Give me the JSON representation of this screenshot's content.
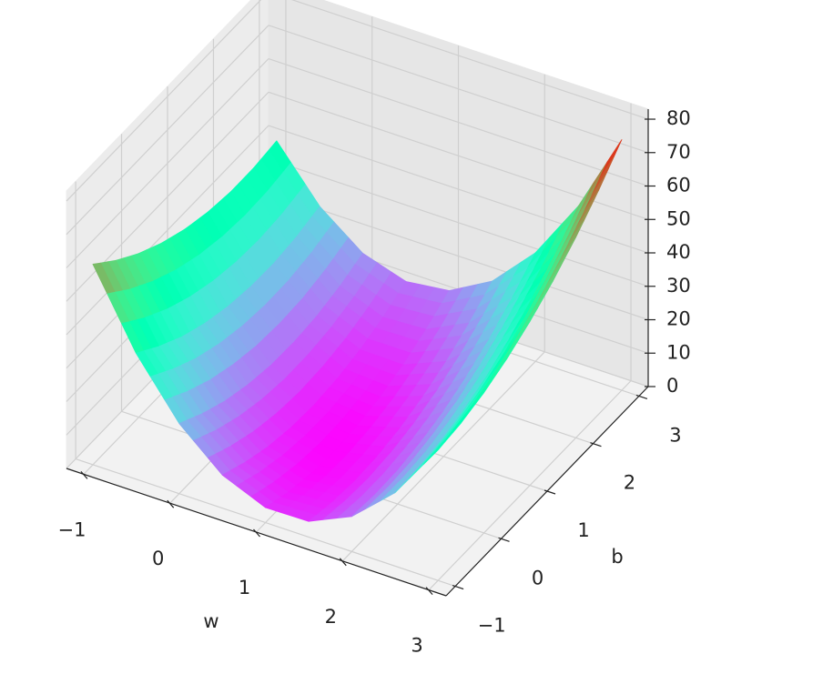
{
  "chart_data": {
    "type": "surface",
    "xlabel": "w",
    "ylabel": "b",
    "colormap": "rainbow",
    "x": [
      -1,
      -0.5,
      0,
      0.5,
      1,
      1.5,
      2,
      2.5,
      3
    ],
    "y": [
      -1,
      -0.5,
      0,
      0.5,
      1,
      1.5,
      2,
      2.5,
      3
    ],
    "z": [
      [
        60,
        54,
        49,
        45,
        42,
        40,
        39,
        39,
        40
      ],
      [
        37.7,
        32.6,
        28.4,
        25.3,
        23.2,
        22.1,
        21.9,
        22.8,
        24.7
      ],
      [
        21,
        16.8,
        13.5,
        11.3,
        10,
        9.8,
        10.5,
        12.3,
        15
      ],
      [
        9.9,
        6.6,
        4.2,
        2.8,
        2.4,
        3.1,
        4.7,
        7.3,
        10.9
      ],
      [
        4.5,
        2,
        0.5,
        0,
        0.5,
        2,
        4.5,
        8,
        12.5
      ],
      [
        4.7,
        3.1,
        2.4,
        2.8,
        4.2,
        6.6,
        9.9,
        14.3,
        19.7
      ],
      [
        10.5,
        9.8,
        10,
        11.3,
        13.5,
        16.8,
        21,
        26.3,
        32.5
      ],
      [
        21.9,
        22.1,
        23.2,
        25.3,
        28.4,
        32.6,
        37.7,
        43.8,
        50.9
      ],
      [
        39,
        40,
        42,
        45,
        49,
        54,
        60,
        67,
        75
      ]
    ],
    "xlim": [
      -1.2,
      3.2
    ],
    "ylim": [
      -1.2,
      3.2
    ],
    "zlim": [
      0,
      83
    ],
    "xticks": [
      {
        "value": -1,
        "label": "−1"
      },
      0,
      1,
      2,
      3
    ],
    "yticks": [
      {
        "value": -1,
        "label": "−1"
      },
      0,
      1,
      2,
      3
    ],
    "zticks": [
      0,
      10,
      20,
      30,
      40,
      50,
      60,
      70,
      80
    ],
    "grid": true
  }
}
